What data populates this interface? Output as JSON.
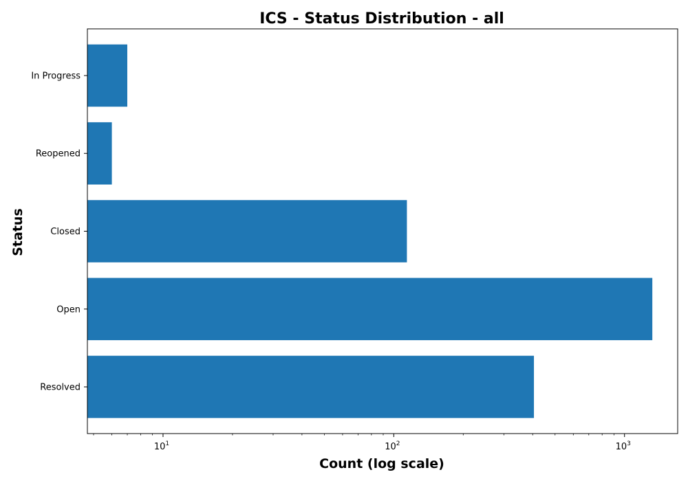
{
  "chart_data": {
    "type": "bar",
    "orientation": "horizontal",
    "title": "ICS - Status Distribution - all",
    "xlabel": "Count (log scale)",
    "ylabel": "Status",
    "x_scale": "log",
    "xlim": [
      4.7,
      1700
    ],
    "x_ticks": [
      {
        "value": 10,
        "base": "10",
        "exp": "1"
      },
      {
        "value": 100,
        "base": "10",
        "exp": "2"
      },
      {
        "value": 1000,
        "base": "10",
        "exp": "3"
      }
    ],
    "categories": [
      "In Progress",
      "Reopened",
      "Closed",
      "Open",
      "Resolved"
    ],
    "values": [
      7,
      6,
      114,
      1320,
      405
    ],
    "bar_color": "#1f77b4",
    "grid": false,
    "legend": "none"
  }
}
